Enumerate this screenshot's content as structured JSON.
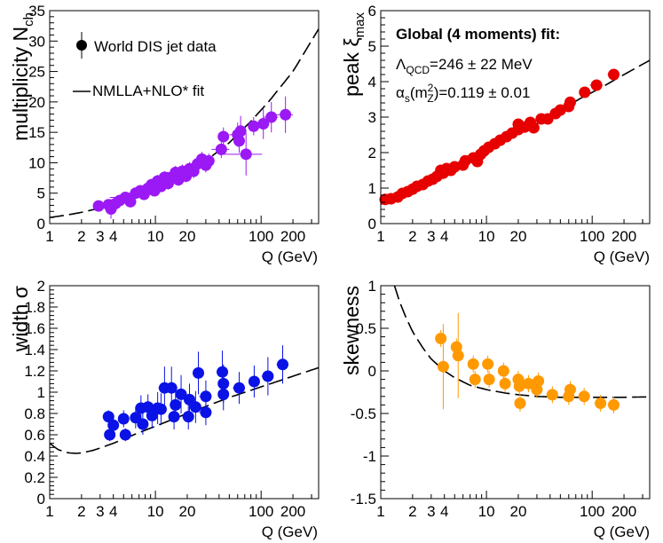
{
  "chart_data": [
    {
      "id": "multiplicity",
      "type": "scatter",
      "ylabel": "multiplicity N",
      "ylabel_sub": "ch",
      "xlabel": "Q (GeV)",
      "xscale": "log",
      "xlim": [
        1,
        350
      ],
      "ylim": [
        0,
        35
      ],
      "xticks": [
        "1",
        "2",
        "3",
        "4",
        "10",
        "20",
        "100",
        "200"
      ],
      "xtick_values": [
        1,
        2,
        3,
        4,
        10,
        20,
        100,
        200
      ],
      "yticks": [
        "0",
        "5",
        "10",
        "15",
        "20",
        "25",
        "30",
        "35"
      ],
      "ytick_values": [
        0,
        5,
        10,
        15,
        20,
        25,
        30,
        35
      ],
      "color": "#9b19f5",
      "legend": [
        {
          "type": "marker",
          "label": "World DIS jet data"
        },
        {
          "type": "line",
          "label": "NMLLA+NLO* fit"
        }
      ],
      "points": [
        {
          "x": 2.9,
          "y": 2.9,
          "ex": 0.25,
          "ey": 0.4
        },
        {
          "x": 3.6,
          "y": 3.1,
          "ex": 0.4,
          "ey": 0.5
        },
        {
          "x": 3.8,
          "y": 2.4,
          "ex": 0.4,
          "ey": 1.6
        },
        {
          "x": 4.2,
          "y": 3.3,
          "ex": 0.5,
          "ey": 0.5
        },
        {
          "x": 4.6,
          "y": 3.8,
          "ex": 0.6,
          "ey": 0.6
        },
        {
          "x": 5.2,
          "y": 4.3,
          "ex": 1.5,
          "ey": 0.7
        },
        {
          "x": 5.8,
          "y": 3.6,
          "ex": 0.8,
          "ey": 0.6
        },
        {
          "x": 6.5,
          "y": 5.0,
          "ex": 1.2,
          "ey": 0.7
        },
        {
          "x": 7.2,
          "y": 5.4,
          "ex": 1.0,
          "ey": 0.8
        },
        {
          "x": 7.8,
          "y": 4.8,
          "ex": 1.5,
          "ey": 0.7
        },
        {
          "x": 8.5,
          "y": 5.8,
          "ex": 1.3,
          "ey": 0.8
        },
        {
          "x": 9.2,
          "y": 6.4,
          "ex": 1.5,
          "ey": 0.9
        },
        {
          "x": 9.8,
          "y": 5.4,
          "ex": 1.2,
          "ey": 0.8
        },
        {
          "x": 10.5,
          "y": 7.0,
          "ex": 2.0,
          "ey": 1.0
        },
        {
          "x": 11.3,
          "y": 6.1,
          "ex": 1.6,
          "ey": 0.9
        },
        {
          "x": 12.2,
          "y": 7.6,
          "ex": 2.0,
          "ey": 1.0
        },
        {
          "x": 13.2,
          "y": 6.6,
          "ex": 1.8,
          "ey": 1.0
        },
        {
          "x": 14.3,
          "y": 7.6,
          "ex": 2.0,
          "ey": 1.0
        },
        {
          "x": 15.5,
          "y": 8.4,
          "ex": 3.0,
          "ey": 1.1
        },
        {
          "x": 16.5,
          "y": 7.2,
          "ex": 2.0,
          "ey": 1.0
        },
        {
          "x": 18.0,
          "y": 8.6,
          "ex": 2.5,
          "ey": 1.1
        },
        {
          "x": 19.5,
          "y": 7.8,
          "ex": 2.6,
          "ey": 1.0
        },
        {
          "x": 21.0,
          "y": 9.0,
          "ex": 3.0,
          "ey": 1.1
        },
        {
          "x": 23.0,
          "y": 8.6,
          "ex": 3.0,
          "ey": 1.1
        },
        {
          "x": 25.0,
          "y": 9.8,
          "ex": 5.0,
          "ey": 1.2
        },
        {
          "x": 27.5,
          "y": 10.6,
          "ex": 4.0,
          "ey": 1.2
        },
        {
          "x": 30.0,
          "y": 9.6,
          "ex": 3.5,
          "ey": 1.2
        },
        {
          "x": 32.0,
          "y": 10.3,
          "ex": 4.0,
          "ey": 1.2
        },
        {
          "x": 42.0,
          "y": 12.2,
          "ex": 8.0,
          "ey": 1.4
        },
        {
          "x": 44.0,
          "y": 14.3,
          "ex": 5.0,
          "ey": 1.5
        },
        {
          "x": 60.0,
          "y": 14.6,
          "ex": 10.0,
          "ey": 2.0
        },
        {
          "x": 62.0,
          "y": 13.6,
          "ex": 6.0,
          "ey": 2.0
        },
        {
          "x": 64.0,
          "y": 15.2,
          "ex": 8.0,
          "ey": 2.5
        },
        {
          "x": 72.0,
          "y": 11.4,
          "ex": 30.0,
          "ey": 3.5
        },
        {
          "x": 85.0,
          "y": 16.0,
          "ex": 10.0,
          "ey": 1.5
        },
        {
          "x": 105.0,
          "y": 16.4,
          "ex": 15.0,
          "ey": 2.5
        },
        {
          "x": 125.0,
          "y": 17.5,
          "ex": 20.0,
          "ey": 2.5
        },
        {
          "x": 170.0,
          "y": 17.9,
          "ex": 30.0,
          "ey": 3.0
        }
      ],
      "fit": {
        "x": [
          1,
          1.5,
          2,
          3,
          5,
          8,
          12,
          20,
          30,
          50,
          80,
          120,
          200,
          350
        ],
        "y": [
          1.0,
          1.45,
          1.85,
          2.55,
          3.75,
          5.05,
          6.4,
          8.4,
          10.3,
          13.3,
          16.8,
          20.2,
          25.0,
          32.0
        ]
      }
    },
    {
      "id": "peak",
      "type": "scatter",
      "ylabel": "peak ξ",
      "ylabel_sub": "max",
      "xlabel": "Q (GeV)",
      "xscale": "log",
      "xlim": [
        1,
        350
      ],
      "ylim": [
        0,
        6
      ],
      "xticks": [
        "1",
        "2",
        "3",
        "4",
        "10",
        "20",
        "100",
        "200"
      ],
      "xtick_values": [
        1,
        2,
        3,
        4,
        10,
        20,
        100,
        200
      ],
      "yticks": [
        "0",
        "1",
        "2",
        "3",
        "4",
        "5",
        "6"
      ],
      "ytick_values": [
        0,
        1,
        2,
        3,
        4,
        5,
        6
      ],
      "color": "#e60000",
      "annotations": [
        {
          "text": "Global (4 moments) fit:",
          "bold": true
        },
        {
          "text": "Λ",
          "sub": "QCD",
          "rest": "=246 ± 22 MeV"
        },
        {
          "text": "α",
          "sub": "s",
          "mid": "(m",
          "sup": "2",
          "sub2": "Z",
          "rest": ")=0.119 ± 0.01"
        }
      ],
      "points": [
        {
          "x": 1.1,
          "y": 0.68,
          "ex": 0.1,
          "ey": 0.06
        },
        {
          "x": 1.25,
          "y": 0.7,
          "ex": 0.1,
          "ey": 0.06
        },
        {
          "x": 1.45,
          "y": 0.75,
          "ex": 0.1,
          "ey": 0.06
        },
        {
          "x": 1.6,
          "y": 0.85,
          "ex": 0.1,
          "ey": 0.06
        },
        {
          "x": 1.8,
          "y": 0.9,
          "ex": 0.12,
          "ey": 0.06
        },
        {
          "x": 2.0,
          "y": 0.97,
          "ex": 0.12,
          "ey": 0.06
        },
        {
          "x": 2.2,
          "y": 1.05,
          "ex": 0.15,
          "ey": 0.06
        },
        {
          "x": 2.5,
          "y": 1.1,
          "ex": 0.15,
          "ey": 0.06
        },
        {
          "x": 2.8,
          "y": 1.2,
          "ex": 0.2,
          "ey": 0.07
        },
        {
          "x": 3.1,
          "y": 1.25,
          "ex": 0.2,
          "ey": 0.07
        },
        {
          "x": 3.4,
          "y": 1.33,
          "ex": 0.3,
          "ey": 0.07
        },
        {
          "x": 3.7,
          "y": 1.5,
          "ex": 0.3,
          "ey": 0.07
        },
        {
          "x": 3.9,
          "y": 1.42,
          "ex": 0.3,
          "ey": 0.07
        },
        {
          "x": 4.2,
          "y": 1.55,
          "ex": 0.3,
          "ey": 0.07
        },
        {
          "x": 4.6,
          "y": 1.5,
          "ex": 0.3,
          "ey": 0.07
        },
        {
          "x": 5.0,
          "y": 1.6,
          "ex": 0.4,
          "ey": 0.07
        },
        {
          "x": 6.0,
          "y": 1.65,
          "ex": 0.5,
          "ey": 0.07
        },
        {
          "x": 6.3,
          "y": 1.77,
          "ex": 0.6,
          "ey": 0.07
        },
        {
          "x": 7.5,
          "y": 1.85,
          "ex": 0.7,
          "ey": 0.07
        },
        {
          "x": 8.2,
          "y": 1.75,
          "ex": 0.7,
          "ey": 0.07
        },
        {
          "x": 8.8,
          "y": 1.95,
          "ex": 0.8,
          "ey": 0.07
        },
        {
          "x": 9.5,
          "y": 2.05,
          "ex": 0.8,
          "ey": 0.07
        },
        {
          "x": 10.5,
          "y": 2.15,
          "ex": 1.0,
          "ey": 0.07
        },
        {
          "x": 12.0,
          "y": 2.25,
          "ex": 1.2,
          "ey": 0.07
        },
        {
          "x": 13.5,
          "y": 2.35,
          "ex": 1.5,
          "ey": 0.07
        },
        {
          "x": 15.5,
          "y": 2.45,
          "ex": 1.5,
          "ey": 0.07
        },
        {
          "x": 17.5,
          "y": 2.55,
          "ex": 2.0,
          "ey": 0.07
        },
        {
          "x": 20.0,
          "y": 2.8,
          "ex": 2.0,
          "ey": 0.08
        },
        {
          "x": 20.0,
          "y": 2.65,
          "ex": 2.0,
          "ey": 0.08
        },
        {
          "x": 23.0,
          "y": 2.72,
          "ex": 2.5,
          "ey": 0.08
        },
        {
          "x": 26.0,
          "y": 2.85,
          "ex": 3.0,
          "ey": 0.08
        },
        {
          "x": 28.0,
          "y": 2.7,
          "ex": 3.0,
          "ey": 0.08
        },
        {
          "x": 33.0,
          "y": 2.95,
          "ex": 4.0,
          "ey": 0.08
        },
        {
          "x": 38.0,
          "y": 2.95,
          "ex": 4.0,
          "ey": 0.08
        },
        {
          "x": 45.0,
          "y": 3.1,
          "ex": 5.0,
          "ey": 0.08
        },
        {
          "x": 50.0,
          "y": 3.2,
          "ex": 6.0,
          "ey": 0.09
        },
        {
          "x": 60.0,
          "y": 3.3,
          "ex": 7.0,
          "ey": 0.09
        },
        {
          "x": 62.0,
          "y": 3.42,
          "ex": 7.0,
          "ey": 0.09
        },
        {
          "x": 85.0,
          "y": 3.7,
          "ex": 10.0,
          "ey": 0.1
        },
        {
          "x": 110.0,
          "y": 3.9,
          "ex": 15.0,
          "ey": 0.1
        },
        {
          "x": 160.0,
          "y": 4.2,
          "ex": 20.0,
          "ey": 0.1
        }
      ],
      "fit": {
        "x": [
          1,
          1.5,
          2,
          3,
          5,
          8,
          12,
          20,
          30,
          50,
          80,
          120,
          200,
          350
        ],
        "y": [
          0.55,
          0.8,
          0.98,
          1.22,
          1.57,
          1.9,
          2.17,
          2.55,
          2.82,
          3.2,
          3.55,
          3.82,
          4.2,
          4.6
        ]
      }
    },
    {
      "id": "width",
      "type": "scatter",
      "ylabel": "width σ",
      "ylabel_sub": "",
      "xlabel": "Q (GeV)",
      "xscale": "log",
      "xlim": [
        1,
        350
      ],
      "ylim": [
        0,
        2
      ],
      "xticks": [
        "1",
        "2",
        "3",
        "4",
        "10",
        "20",
        "100",
        "200"
      ],
      "xtick_values": [
        1,
        2,
        3,
        4,
        10,
        20,
        100,
        200
      ],
      "yticks": [
        "0",
        "0.2",
        "0.4",
        "0.6",
        "0.8",
        "1",
        "1.2",
        "1.4",
        "1.6",
        "1.8",
        "2"
      ],
      "ytick_values": [
        0,
        0.2,
        0.4,
        0.6,
        0.8,
        1,
        1.2,
        1.4,
        1.6,
        1.8,
        2
      ],
      "color": "#0a12e6",
      "points": [
        {
          "x": 3.6,
          "y": 0.77,
          "ex": 0.3,
          "ey": 0.06
        },
        {
          "x": 3.7,
          "y": 0.6,
          "ex": 0.3,
          "ey": 0.06
        },
        {
          "x": 4.0,
          "y": 0.69,
          "ex": 0.4,
          "ey": 0.08
        },
        {
          "x": 5.0,
          "y": 0.75,
          "ex": 0.4,
          "ey": 0.08
        },
        {
          "x": 5.2,
          "y": 0.6,
          "ex": 0.4,
          "ey": 0.06
        },
        {
          "x": 6.5,
          "y": 0.76,
          "ex": 0.6,
          "ey": 0.1
        },
        {
          "x": 7.3,
          "y": 0.85,
          "ex": 0.7,
          "ey": 0.12
        },
        {
          "x": 7.6,
          "y": 0.7,
          "ex": 0.7,
          "ey": 0.1
        },
        {
          "x": 8.5,
          "y": 0.86,
          "ex": 0.8,
          "ey": 0.12
        },
        {
          "x": 9.3,
          "y": 0.78,
          "ex": 0.9,
          "ey": 0.12
        },
        {
          "x": 10.5,
          "y": 0.85,
          "ex": 1.0,
          "ey": 0.15
        },
        {
          "x": 11.3,
          "y": 0.84,
          "ex": 1.0,
          "ey": 0.15
        },
        {
          "x": 12.2,
          "y": 1.04,
          "ex": 1.5,
          "ey": 0.2
        },
        {
          "x": 14.2,
          "y": 1.04,
          "ex": 1.5,
          "ey": 0.2
        },
        {
          "x": 15.0,
          "y": 0.77,
          "ex": 1.5,
          "ey": 0.12
        },
        {
          "x": 15.5,
          "y": 0.88,
          "ex": 1.8,
          "ey": 0.15
        },
        {
          "x": 17.5,
          "y": 0.98,
          "ex": 2.0,
          "ey": 0.18
        },
        {
          "x": 20.5,
          "y": 0.77,
          "ex": 2.5,
          "ey": 0.12
        },
        {
          "x": 21.0,
          "y": 0.93,
          "ex": 2.5,
          "ey": 0.15
        },
        {
          "x": 24.0,
          "y": 0.86,
          "ex": 3.0,
          "ey": 0.15
        },
        {
          "x": 25.5,
          "y": 1.18,
          "ex": 3.0,
          "ey": 0.2
        },
        {
          "x": 30.0,
          "y": 0.96,
          "ex": 4.0,
          "ey": 0.15
        },
        {
          "x": 30.0,
          "y": 0.81,
          "ex": 4.0,
          "ey": 0.12
        },
        {
          "x": 43.0,
          "y": 1.19,
          "ex": 5.0,
          "ey": 0.2
        },
        {
          "x": 44.0,
          "y": 0.98,
          "ex": 5.0,
          "ey": 0.15
        },
        {
          "x": 44.0,
          "y": 1.08,
          "ex": 5.0,
          "ey": 0.18
        },
        {
          "x": 62.0,
          "y": 1.04,
          "ex": 8.0,
          "ey": 0.15
        },
        {
          "x": 86.0,
          "y": 1.1,
          "ex": 10.0,
          "ey": 0.15
        },
        {
          "x": 116.0,
          "y": 1.15,
          "ex": 15.0,
          "ey": 0.18
        },
        {
          "x": 160.0,
          "y": 1.26,
          "ex": 20.0,
          "ey": 0.18
        }
      ],
      "fit": {
        "x": [
          1,
          1.2,
          1.5,
          1.8,
          2,
          2.5,
          3,
          4,
          5,
          7,
          10,
          20,
          50,
          100,
          200,
          350
        ],
        "y": [
          0.52,
          0.46,
          0.43,
          0.425,
          0.43,
          0.45,
          0.475,
          0.52,
          0.56,
          0.62,
          0.68,
          0.8,
          0.95,
          1.05,
          1.15,
          1.23
        ]
      }
    },
    {
      "id": "skewness",
      "type": "scatter",
      "ylabel": "skewness",
      "ylabel_sub": "",
      "xlabel": "Q (GeV)",
      "xscale": "log",
      "xlim": [
        1,
        350
      ],
      "ylim": [
        -1.5,
        1
      ],
      "xticks": [
        "1",
        "2",
        "3",
        "4",
        "10",
        "20",
        "100",
        "200"
      ],
      "xtick_values": [
        1,
        2,
        3,
        4,
        10,
        20,
        100,
        200
      ],
      "yticks": [
        "-1.5",
        "-1",
        "-0.5",
        "0",
        "0.5",
        "1"
      ],
      "ytick_values": [
        -1.5,
        -1,
        -0.5,
        0,
        0.5,
        1
      ],
      "color": "#ff9900",
      "points": [
        {
          "x": 3.7,
          "y": 0.38,
          "ex": 0.3,
          "ey": 0.1
        },
        {
          "x": 3.9,
          "y": 0.05,
          "ex": 0.4,
          "ey": 0.5
        },
        {
          "x": 5.2,
          "y": 0.28,
          "ex": 0.5,
          "ey": 0.1
        },
        {
          "x": 5.4,
          "y": 0.18,
          "ex": 0.5,
          "ey": 0.5
        },
        {
          "x": 7.5,
          "y": 0.08,
          "ex": 0.7,
          "ey": 0.1
        },
        {
          "x": 7.8,
          "y": -0.1,
          "ex": 0.7,
          "ey": 0.1
        },
        {
          "x": 10.3,
          "y": 0.08,
          "ex": 1.0,
          "ey": 0.1
        },
        {
          "x": 10.6,
          "y": -0.1,
          "ex": 1.0,
          "ey": 0.1
        },
        {
          "x": 14.5,
          "y": 0.0,
          "ex": 1.5,
          "ey": 0.1
        },
        {
          "x": 15.0,
          "y": -0.15,
          "ex": 1.5,
          "ey": 0.1
        },
        {
          "x": 20.0,
          "y": -0.1,
          "ex": 2.0,
          "ey": 0.1
        },
        {
          "x": 20.5,
          "y": -0.18,
          "ex": 2.0,
          "ey": 0.1
        },
        {
          "x": 20.8,
          "y": -0.38,
          "ex": 2.0,
          "ey": 0.1
        },
        {
          "x": 25.0,
          "y": -0.15,
          "ex": 3.0,
          "ey": 0.1
        },
        {
          "x": 30.0,
          "y": -0.22,
          "ex": 3.0,
          "ey": 0.1
        },
        {
          "x": 31.0,
          "y": -0.12,
          "ex": 4.0,
          "ey": 0.1
        },
        {
          "x": 42.0,
          "y": -0.28,
          "ex": 5.0,
          "ey": 0.1
        },
        {
          "x": 60.0,
          "y": -0.3,
          "ex": 6.0,
          "ey": 0.1
        },
        {
          "x": 62.0,
          "y": -0.22,
          "ex": 7.0,
          "ey": 0.1
        },
        {
          "x": 84.0,
          "y": -0.3,
          "ex": 10.0,
          "ey": 0.1
        },
        {
          "x": 120.0,
          "y": -0.38,
          "ex": 15.0,
          "ey": 0.1
        },
        {
          "x": 160.0,
          "y": -0.4,
          "ex": 20.0,
          "ey": 0.1
        }
      ],
      "fit": {
        "x": [
          1.35,
          1.5,
          1.7,
          2,
          2.5,
          3,
          4,
          5,
          7,
          10,
          15,
          20,
          30,
          50,
          100,
          200,
          350
        ],
        "y": [
          1.0,
          0.82,
          0.65,
          0.46,
          0.27,
          0.14,
          0.0,
          -0.08,
          -0.17,
          -0.22,
          -0.26,
          -0.28,
          -0.3,
          -0.31,
          -0.31,
          -0.31,
          -0.305
        ]
      }
    }
  ]
}
